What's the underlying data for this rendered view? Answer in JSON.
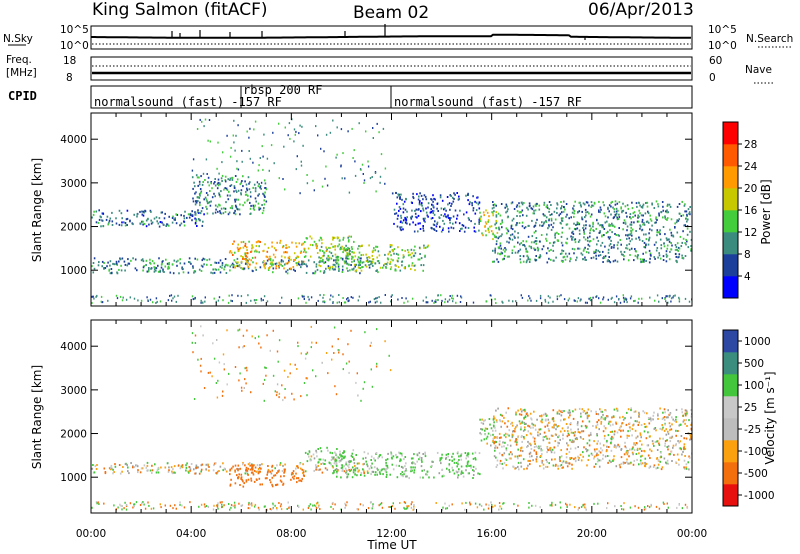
{
  "header": {
    "station": "King Salmon (fitACF)",
    "beam": "Beam 02",
    "date": "06/Apr/2013"
  },
  "strips": {
    "nsky_label": "N.Sky",
    "nsearch_label": "N.Search",
    "freq_label_1": "Freq.",
    "freq_label_2": "[MHz]",
    "nave_label": "Nave",
    "cpid_label": "CPID",
    "noise_ticks": [
      "10^5",
      "10^0"
    ],
    "freq_ticks": [
      "18",
      "8"
    ],
    "nave_ticks": [
      "60",
      "0"
    ]
  },
  "cpid_segments": [
    {
      "label": "normalsound (fast) -157 RF",
      "start_hour": 0
    },
    {
      "label": "rbsp 200 RF",
      "start_hour": 6
    },
    {
      "label": "normalsound (fast) -157 RF",
      "start_hour": 12
    }
  ],
  "colors": {
    "power_scale": [
      "#0000ff",
      "#1c3f9c",
      "#3b8c7e",
      "#43cc3b",
      "#c8c800",
      "#ff9a00",
      "#ff5a00",
      "#ff0000"
    ],
    "velocity_scale": [
      "#e8100e",
      "#f36f0d",
      "#fba00e",
      "#bdbdbd",
      "#c8c8c8",
      "#43c63b",
      "#3b8e7e",
      "#2c48a3"
    ],
    "ground_scatter": "#a0a0a0"
  },
  "chart_data": [
    {
      "type": "heatmap",
      "panel": "power",
      "ylabel": "Slant Range [km]",
      "xlim": [
        "00:00",
        "24:00"
      ],
      "ylim": [
        180,
        4600
      ],
      "yticks": [
        1000,
        2000,
        3000,
        4000
      ],
      "colorbar_label": "Power [dB]",
      "colorbar_ticks": [
        4,
        8,
        12,
        16,
        20,
        24,
        28
      ],
      "colorbar_range": [
        0,
        32
      ],
      "scatter_regions": [
        {
          "t_start": 0.0,
          "t_end": 11.5,
          "range_km": [
            950,
            1300
          ],
          "power_db": 10
        },
        {
          "t_start": 5.5,
          "t_end": 8.5,
          "range_km": [
            1050,
            1700
          ],
          "power_db": 20
        },
        {
          "t_start": 8.5,
          "t_end": 10.5,
          "range_km": [
            1300,
            1800
          ],
          "power_db": 16
        },
        {
          "t_start": 0.0,
          "t_end": 4.5,
          "range_km": [
            2000,
            2400
          ],
          "power_db": 8
        },
        {
          "t_start": 4.0,
          "t_end": 7.0,
          "range_km": [
            2300,
            3200
          ],
          "power_db": 10
        },
        {
          "t_start": 9.0,
          "t_end": 13.5,
          "range_km": [
            1000,
            1600
          ],
          "power_db": 14
        },
        {
          "t_start": 12.0,
          "t_end": 15.5,
          "range_km": [
            1900,
            2800
          ],
          "power_db": 6
        },
        {
          "t_start": 15.5,
          "t_end": 16.2,
          "range_km": [
            1700,
            2400
          ],
          "power_db": 18
        },
        {
          "t_start": 16.0,
          "t_end": 24.0,
          "range_km": [
            1200,
            2600
          ],
          "power_db": 10
        }
      ]
    },
    {
      "type": "heatmap",
      "panel": "velocity",
      "ylabel": "Slant Range [km]",
      "xlabel": "Time UT",
      "xlim": [
        "00:00",
        "24:00"
      ],
      "ylim": [
        180,
        4600
      ],
      "xticks": [
        "00:00",
        "04:00",
        "08:00",
        "12:00",
        "16:00",
        "20:00",
        "00:00"
      ],
      "yticks": [
        1000,
        2000,
        3000,
        4000
      ],
      "colorbar_label": "Velocity [m s⁻¹]",
      "colorbar_ticks": [
        -1000,
        -500,
        -100,
        -25,
        25,
        100,
        500,
        1000
      ],
      "scatter_regions": [
        {
          "t_start": 0.0,
          "t_end": 11.5,
          "range_km": [
            1100,
            1350
          ],
          "velocity": 0
        },
        {
          "t_start": 5.5,
          "t_end": 8.5,
          "range_km": [
            800,
            1300
          ],
          "velocity": -300
        },
        {
          "t_start": 8.5,
          "t_end": 10.5,
          "range_km": [
            1300,
            1700
          ],
          "velocity": 100
        },
        {
          "t_start": 9.5,
          "t_end": 15.5,
          "range_km": [
            1000,
            1600
          ],
          "velocity": 150
        },
        {
          "t_start": 15.5,
          "t_end": 16.2,
          "range_km": [
            1700,
            2400
          ],
          "velocity": 80
        },
        {
          "t_start": 16.0,
          "t_end": 24.0,
          "range_km": [
            1200,
            2600
          ],
          "velocity": 0
        }
      ]
    }
  ]
}
